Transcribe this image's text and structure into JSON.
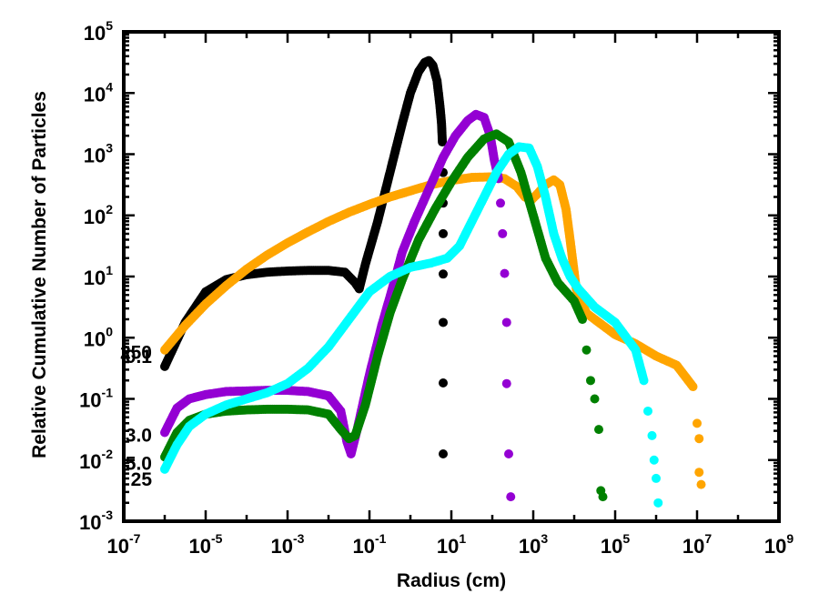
{
  "chart_data": {
    "type": "scatter",
    "title": "",
    "xlabel": "Radius (cm)",
    "ylabel": "Relative Cumulative Number of Particles",
    "xscale": "log",
    "yscale": "log",
    "xlim_exp": [
      -7,
      9
    ],
    "ylim_exp": [
      -3,
      5
    ],
    "x_ticks": [
      {
        "base": "10",
        "exp": "-7"
      },
      {
        "base": "10",
        "exp": "-5"
      },
      {
        "base": "10",
        "exp": "-3"
      },
      {
        "base": "10",
        "exp": "-1"
      },
      {
        "base": "10",
        "exp": "1"
      },
      {
        "base": "10",
        "exp": "3"
      },
      {
        "base": "10",
        "exp": "5"
      },
      {
        "base": "10",
        "exp": "7"
      },
      {
        "base": "10",
        "exp": "9"
      }
    ],
    "y_ticks": [
      {
        "base": "10",
        "exp": "-3"
      },
      {
        "base": "10",
        "exp": "-2"
      },
      {
        "base": "10",
        "exp": "-1"
      },
      {
        "base": "10",
        "exp": "0"
      },
      {
        "base": "10",
        "exp": "1"
      },
      {
        "base": "10",
        "exp": "2"
      },
      {
        "base": "10",
        "exp": "3"
      },
      {
        "base": "10",
        "exp": "4"
      },
      {
        "base": "10",
        "exp": "5"
      }
    ],
    "series": [
      {
        "name": "0.1",
        "label": "0.1",
        "color": "#000000",
        "points_log": [
          [
            -6,
            -0.47
          ],
          [
            -5.5,
            0.25
          ],
          [
            -5,
            0.75
          ],
          [
            -4.5,
            0.95
          ],
          [
            -4,
            1.03
          ],
          [
            -3.5,
            1.07
          ],
          [
            -3,
            1.09
          ],
          [
            -2.5,
            1.1
          ],
          [
            -2,
            1.1
          ],
          [
            -1.6,
            1.07
          ],
          [
            -1.35,
            0.9
          ],
          [
            -1.25,
            0.8
          ],
          [
            -1.1,
            1.2
          ],
          [
            -0.8,
            1.9
          ],
          [
            -0.5,
            2.7
          ],
          [
            -0.2,
            3.5
          ],
          [
            0,
            4.0
          ],
          [
            0.2,
            4.35
          ],
          [
            0.35,
            4.5
          ],
          [
            0.45,
            4.53
          ],
          [
            0.55,
            4.45
          ],
          [
            0.65,
            4.2
          ],
          [
            0.72,
            3.8
          ],
          [
            0.76,
            3.5
          ],
          [
            0.78,
            3.2
          ]
        ],
        "drops_log": [
          [
            0.8,
            2.7
          ],
          [
            0.8,
            2.2
          ],
          [
            0.8,
            1.7
          ],
          [
            0.8,
            1.04
          ],
          [
            0.8,
            0.25
          ],
          [
            0.8,
            -0.74
          ],
          [
            0.8,
            -1.9
          ]
        ]
      },
      {
        "name": "250",
        "label": "250",
        "color": "#ffa500",
        "points_log": [
          [
            -6,
            -0.2
          ],
          [
            -5.5,
            0.2
          ],
          [
            -5,
            0.55
          ],
          [
            -4.5,
            0.85
          ],
          [
            -4,
            1.12
          ],
          [
            -3.5,
            1.35
          ],
          [
            -3,
            1.55
          ],
          [
            -2.5,
            1.73
          ],
          [
            -2,
            1.9
          ],
          [
            -1.5,
            2.05
          ],
          [
            -1,
            2.18
          ],
          [
            -0.5,
            2.3
          ],
          [
            0,
            2.4
          ],
          [
            0.5,
            2.5
          ],
          [
            1,
            2.57
          ],
          [
            1.5,
            2.62
          ],
          [
            2,
            2.63
          ],
          [
            2.3,
            2.6
          ],
          [
            2.6,
            2.47
          ],
          [
            2.8,
            2.3
          ],
          [
            2.95,
            2.25
          ],
          [
            3.1,
            2.35
          ],
          [
            3.3,
            2.5
          ],
          [
            3.5,
            2.58
          ],
          [
            3.65,
            2.5
          ],
          [
            3.8,
            2.1
          ],
          [
            3.9,
            1.6
          ],
          [
            4.05,
            0.8
          ],
          [
            4.3,
            0.4
          ],
          [
            4.6,
            0.25
          ],
          [
            5,
            0.05
          ],
          [
            5.5,
            -0.1
          ],
          [
            6,
            -0.3
          ],
          [
            6.5,
            -0.45
          ],
          [
            6.9,
            -0.8
          ]
        ],
        "drops_log": [
          [
            7.0,
            -1.4
          ],
          [
            7.05,
            -1.65
          ],
          [
            7.05,
            -2.2
          ],
          [
            7.1,
            -2.4
          ]
        ]
      },
      {
        "name": "3.0",
        "label": "3.0",
        "color": "#9400d3",
        "points_log": [
          [
            -6,
            -1.55
          ],
          [
            -5.7,
            -1.15
          ],
          [
            -5.4,
            -1.0
          ],
          [
            -5,
            -0.93
          ],
          [
            -4.5,
            -0.88
          ],
          [
            -4,
            -0.87
          ],
          [
            -3.5,
            -0.86
          ],
          [
            -3,
            -0.86
          ],
          [
            -2.5,
            -0.88
          ],
          [
            -2,
            -0.95
          ],
          [
            -1.7,
            -1.2
          ],
          [
            -1.55,
            -1.7
          ],
          [
            -1.45,
            -1.9
          ],
          [
            -1.3,
            -1.5
          ],
          [
            -1,
            -0.6
          ],
          [
            -0.7,
            0.2
          ],
          [
            -0.4,
            0.9
          ],
          [
            -0.2,
            1.4
          ],
          [
            0.1,
            1.9
          ],
          [
            0.5,
            2.5
          ],
          [
            0.8,
            2.95
          ],
          [
            1.1,
            3.3
          ],
          [
            1.4,
            3.55
          ],
          [
            1.6,
            3.65
          ],
          [
            1.8,
            3.6
          ],
          [
            1.95,
            3.3
          ],
          [
            2.05,
            2.9
          ],
          [
            2.15,
            2.6
          ]
        ],
        "drops_log": [
          [
            2.2,
            2.2
          ],
          [
            2.25,
            1.7
          ],
          [
            2.3,
            1.05
          ],
          [
            2.35,
            0.25
          ],
          [
            2.35,
            -0.75
          ],
          [
            2.4,
            -1.9
          ],
          [
            2.45,
            -2.6
          ]
        ]
      },
      {
        "name": "5.0",
        "label": "5.0",
        "color": "#008000",
        "points_log": [
          [
            -6,
            -1.95
          ],
          [
            -5.7,
            -1.55
          ],
          [
            -5.4,
            -1.35
          ],
          [
            -5,
            -1.25
          ],
          [
            -4.5,
            -1.2
          ],
          [
            -4,
            -1.18
          ],
          [
            -3.5,
            -1.17
          ],
          [
            -3,
            -1.17
          ],
          [
            -2.5,
            -1.18
          ],
          [
            -2,
            -1.25
          ],
          [
            -1.7,
            -1.5
          ],
          [
            -1.5,
            -1.65
          ],
          [
            -1.35,
            -1.6
          ],
          [
            -1.1,
            -1.1
          ],
          [
            -0.8,
            -0.3
          ],
          [
            -0.5,
            0.4
          ],
          [
            -0.2,
            0.95
          ],
          [
            0.2,
            1.6
          ],
          [
            0.6,
            2.1
          ],
          [
            1,
            2.55
          ],
          [
            1.4,
            2.95
          ],
          [
            1.8,
            3.25
          ],
          [
            2.1,
            3.33
          ],
          [
            2.4,
            3.2
          ],
          [
            2.7,
            2.7
          ],
          [
            3,
            2.0
          ],
          [
            3.3,
            1.3
          ],
          [
            3.6,
            0.9
          ],
          [
            4,
            0.6
          ],
          [
            4.2,
            0.3
          ]
        ],
        "drops_log": [
          [
            4.3,
            -0.2
          ],
          [
            4.4,
            -0.7
          ],
          [
            4.5,
            -1.0
          ],
          [
            4.6,
            -1.5
          ],
          [
            4.65,
            -2.5
          ],
          [
            4.7,
            -2.6
          ]
        ]
      },
      {
        "name": "25",
        "label": "25",
        "color": "#00ffff",
        "points_log": [
          [
            -6,
            -2.15
          ],
          [
            -5.7,
            -1.75
          ],
          [
            -5.4,
            -1.45
          ],
          [
            -5,
            -1.25
          ],
          [
            -4.5,
            -1.1
          ],
          [
            -4,
            -1.0
          ],
          [
            -3.5,
            -0.9
          ],
          [
            -3,
            -0.75
          ],
          [
            -2.5,
            -0.5
          ],
          [
            -2,
            -0.15
          ],
          [
            -1.5,
            0.3
          ],
          [
            -1,
            0.75
          ],
          [
            -0.5,
            1.0
          ],
          [
            0,
            1.15
          ],
          [
            0.5,
            1.22
          ],
          [
            0.9,
            1.3
          ],
          [
            1.2,
            1.5
          ],
          [
            1.5,
            1.9
          ],
          [
            1.8,
            2.3
          ],
          [
            2.1,
            2.7
          ],
          [
            2.4,
            3.0
          ],
          [
            2.65,
            3.12
          ],
          [
            2.9,
            3.1
          ],
          [
            3.1,
            2.8
          ],
          [
            3.3,
            2.3
          ],
          [
            3.5,
            1.7
          ],
          [
            3.7,
            1.3
          ],
          [
            3.9,
            1.0
          ],
          [
            4.1,
            0.8
          ],
          [
            4.5,
            0.5
          ],
          [
            5,
            0.25
          ],
          [
            5.5,
            -0.2
          ],
          [
            5.7,
            -0.7
          ]
        ],
        "drops_log": [
          [
            5.8,
            -1.2
          ],
          [
            5.9,
            -1.6
          ],
          [
            5.95,
            -2.0
          ],
          [
            6.0,
            -2.3
          ],
          [
            6.05,
            -2.7
          ]
        ]
      }
    ],
    "annotations": [
      {
        "text": "0.1",
        "series": "0.1"
      },
      {
        "text": "250",
        "series": "250"
      },
      {
        "text": "3.0",
        "series": "3.0"
      },
      {
        "text": "5.0",
        "series": "5.0"
      },
      {
        "text": "25",
        "series": "25"
      }
    ]
  }
}
